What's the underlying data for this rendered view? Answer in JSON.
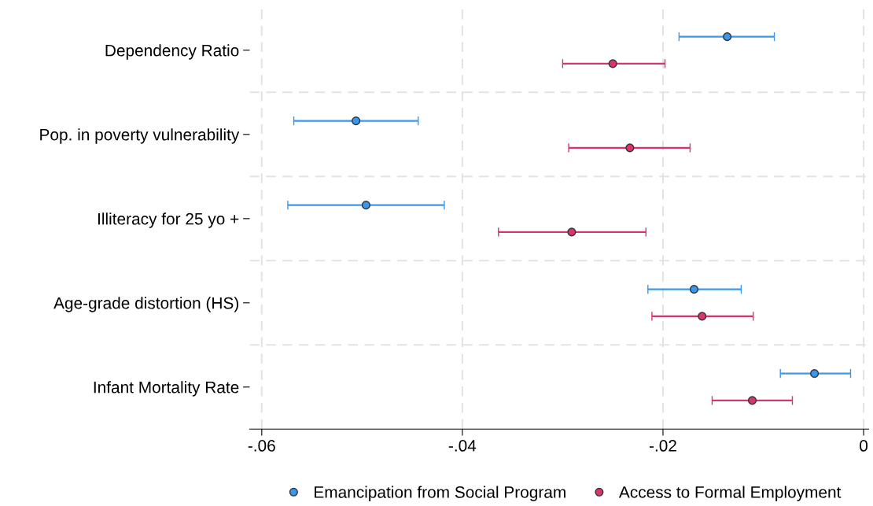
{
  "chart_data": {
    "type": "scatter",
    "orientation": "horizontal",
    "categories": [
      "Dependency Ratio",
      "Pop. in poverty vulnerability",
      "Illiteracy for 25 yo +",
      "Age-grade distortion (HS)",
      "Infant Mortality Rate"
    ],
    "series": [
      {
        "name": "Emancipation from Social Program",
        "color": "#3a97ee",
        "values": [
          -0.0136,
          -0.0506,
          -0.0496,
          -0.0169,
          -0.0049
        ],
        "errors": [
          [
            -0.0184,
            -0.0089
          ],
          [
            -0.0568,
            -0.0444
          ],
          [
            -0.0574,
            -0.0418
          ],
          [
            -0.0215,
            -0.0122
          ],
          [
            -0.0083,
            -0.0013
          ]
        ]
      },
      {
        "name": "Access to Formal Employment",
        "color": "#d8356e",
        "values": [
          -0.025,
          -0.0233,
          -0.0291,
          -0.0161,
          -0.0111
        ],
        "errors": [
          [
            -0.03,
            -0.0198
          ],
          [
            -0.0294,
            -0.0173
          ],
          [
            -0.0364,
            -0.0217
          ],
          [
            -0.0211,
            -0.011
          ],
          [
            -0.0151,
            -0.0071
          ]
        ]
      }
    ],
    "xlim": [
      -0.0612,
      0.0005
    ],
    "xticks": [
      {
        "value": -0.06,
        "label": "-.06"
      },
      {
        "value": -0.04,
        "label": "-.04"
      },
      {
        "value": -0.02,
        "label": "-.02"
      },
      0
    ],
    "grid": true,
    "legend": "bottom",
    "marker": "circle"
  }
}
